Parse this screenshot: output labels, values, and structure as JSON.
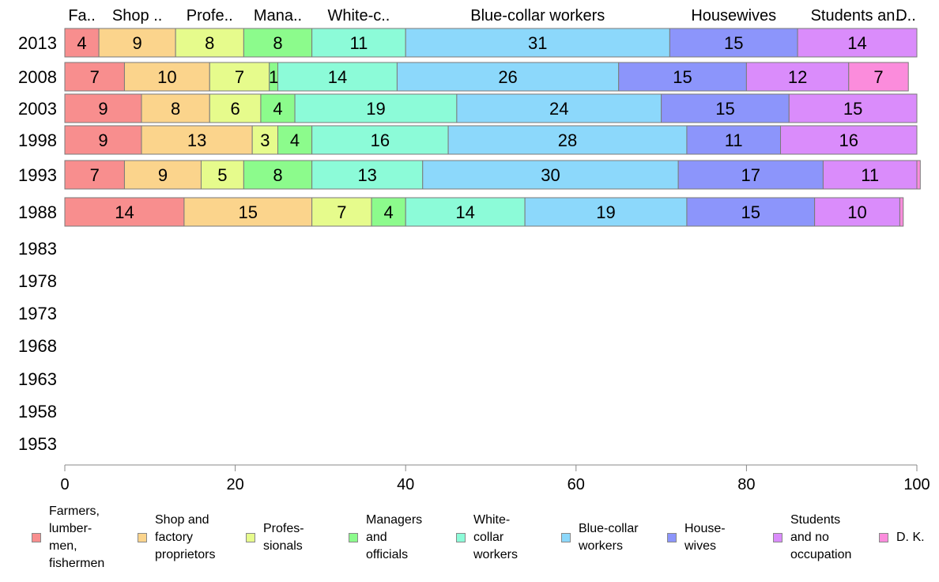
{
  "chart_data": {
    "type": "bar",
    "orientation": "horizontal",
    "stacked": true,
    "categories": [
      "2013",
      "2008",
      "2003",
      "1998",
      "1993",
      "1988",
      "1983",
      "1978",
      "1973",
      "1968",
      "1963",
      "1958",
      "1953"
    ],
    "column_headers": [
      "Fa..",
      "Shop ..",
      "Profe..",
      "Mana..",
      "White-c..",
      "Blue-collar workers",
      "Housewives",
      "Students an..",
      "D.."
    ],
    "series": [
      {
        "name": "Farmers,\nlumber-\nmen,\nfishermen",
        "color": "#f88e8e",
        "values": [
          4,
          7,
          9,
          9,
          7,
          14,
          null,
          null,
          null,
          null,
          null,
          null,
          null
        ]
      },
      {
        "name": "Shop and\nfactory\nproprietors",
        "color": "#fbd48c",
        "values": [
          9,
          10,
          8,
          13,
          9,
          15,
          null,
          null,
          null,
          null,
          null,
          null,
          null
        ]
      },
      {
        "name": "Profes-\nsionals",
        "color": "#e6fb8c",
        "values": [
          8,
          7,
          6,
          3,
          5,
          7,
          null,
          null,
          null,
          null,
          null,
          null,
          null
        ]
      },
      {
        "name": "Managers\nand\nofficials",
        "color": "#8cfb8c",
        "values": [
          8,
          1,
          4,
          4,
          8,
          4,
          null,
          null,
          null,
          null,
          null,
          null,
          null
        ]
      },
      {
        "name": "White-\ncollar\nworkers",
        "color": "#8cfbd8",
        "values": [
          11,
          14,
          19,
          16,
          13,
          14,
          null,
          null,
          null,
          null,
          null,
          null,
          null
        ]
      },
      {
        "name": "Blue-collar\nworkers",
        "color": "#8cd8fb",
        "values": [
          31,
          26,
          24,
          28,
          30,
          19,
          null,
          null,
          null,
          null,
          null,
          null,
          null
        ]
      },
      {
        "name": "House-\nwives",
        "color": "#8c95fb",
        "values": [
          15,
          15,
          15,
          11,
          17,
          15,
          null,
          null,
          null,
          null,
          null,
          null,
          null
        ]
      },
      {
        "name": "Students\nand no\noccupation",
        "color": "#da8cfb",
        "values": [
          14,
          12,
          15,
          16,
          11,
          10,
          null,
          null,
          null,
          null,
          null,
          null,
          null
        ]
      },
      {
        "name": "D. K.",
        "color": "#fb8cdc",
        "values": [
          0,
          7,
          0,
          0,
          0.4,
          0.4,
          null,
          null,
          null,
          null,
          null,
          null,
          null
        ]
      }
    ],
    "xlim": [
      0,
      100
    ],
    "xticks": [
      "0",
      "20",
      "40",
      "60",
      "80",
      "100"
    ],
    "grid": false,
    "legend_position": "bottom"
  }
}
